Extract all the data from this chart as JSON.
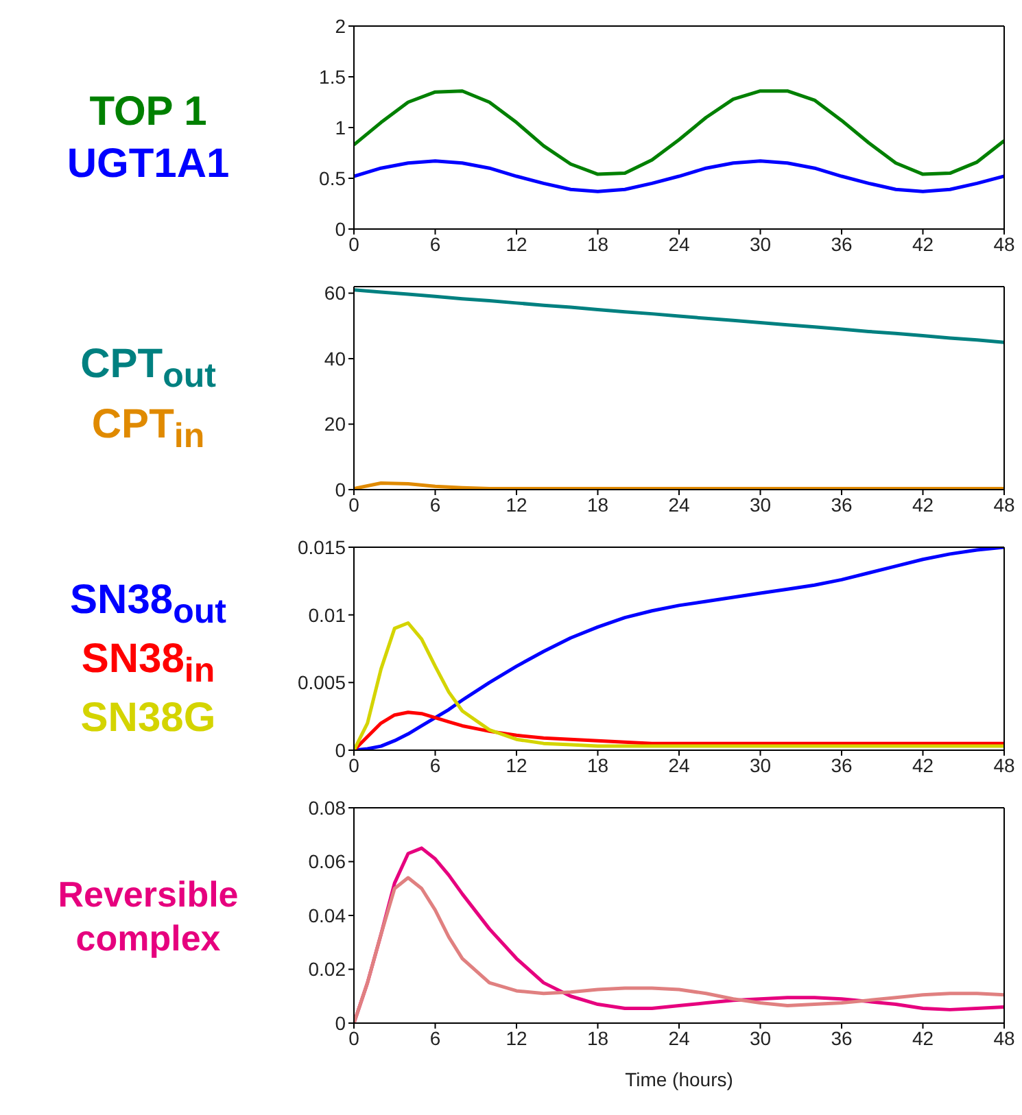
{
  "chart_data": [
    {
      "type": "line",
      "legend": "left",
      "x": [
        0,
        2,
        4,
        6,
        8,
        10,
        12,
        14,
        16,
        18,
        20,
        22,
        24,
        26,
        28,
        30,
        32,
        34,
        36,
        38,
        40,
        42,
        44,
        46,
        48
      ],
      "xlim": [
        0,
        48
      ],
      "xticks": [
        0,
        6,
        12,
        18,
        24,
        30,
        36,
        42,
        48
      ],
      "ylim": [
        0,
        2
      ],
      "yticks": [
        0,
        0.5,
        1,
        1.5,
        2
      ],
      "series": [
        {
          "name": "TOP 1",
          "color": "#008000",
          "values": [
            0.83,
            1.05,
            1.25,
            1.35,
            1.36,
            1.25,
            1.05,
            0.82,
            0.64,
            0.54,
            0.55,
            0.68,
            0.88,
            1.1,
            1.28,
            1.36,
            1.36,
            1.27,
            1.07,
            0.85,
            0.65,
            0.54,
            0.55,
            0.66,
            0.87
          ]
        },
        {
          "name": "UGT1A1",
          "color": "#0000ff",
          "values": [
            0.52,
            0.6,
            0.65,
            0.67,
            0.65,
            0.6,
            0.52,
            0.45,
            0.39,
            0.37,
            0.39,
            0.45,
            0.52,
            0.6,
            0.65,
            0.67,
            0.65,
            0.6,
            0.52,
            0.45,
            0.39,
            0.37,
            0.39,
            0.45,
            0.52
          ]
        }
      ]
    },
    {
      "type": "line",
      "legend": "left",
      "x": [
        0,
        2,
        4,
        6,
        8,
        10,
        12,
        14,
        16,
        18,
        20,
        22,
        24,
        26,
        28,
        30,
        32,
        34,
        36,
        38,
        40,
        42,
        44,
        46,
        48
      ],
      "xlim": [
        0,
        48
      ],
      "xticks": [
        0,
        6,
        12,
        18,
        24,
        30,
        36,
        42,
        48
      ],
      "ylim": [
        0,
        62
      ],
      "yticks": [
        0,
        20,
        40,
        60
      ],
      "series": [
        {
          "name": "CPT$_{out}$",
          "color": "#008080",
          "values": [
            61,
            60.3,
            59.7,
            59,
            58.3,
            57.7,
            57,
            56.3,
            55.7,
            55,
            54.3,
            53.7,
            53,
            52.3,
            51.7,
            51,
            50.3,
            49.7,
            49,
            48.3,
            47.7,
            47,
            46.3,
            45.7,
            45
          ]
        },
        {
          "name": "CPT$_{in}$",
          "color": "#e08a00",
          "values": [
            0.3,
            2,
            1.8,
            1,
            0.6,
            0.3,
            0.3,
            0.3,
            0.3,
            0.3,
            0.3,
            0.3,
            0.3,
            0.3,
            0.3,
            0.3,
            0.3,
            0.3,
            0.3,
            0.3,
            0.3,
            0.3,
            0.3,
            0.3,
            0.3
          ]
        }
      ]
    },
    {
      "type": "line",
      "legend": "left",
      "x": [
        0,
        1,
        2,
        3,
        4,
        5,
        6,
        7,
        8,
        10,
        12,
        14,
        16,
        18,
        20,
        22,
        24,
        26,
        28,
        30,
        32,
        34,
        36,
        38,
        40,
        42,
        44,
        46,
        48
      ],
      "xlim": [
        0,
        48
      ],
      "xticks": [
        0,
        6,
        12,
        18,
        24,
        30,
        36,
        42,
        48
      ],
      "ylim": [
        0,
        0.015
      ],
      "yticks": [
        0,
        0.005,
        0.01,
        0.015
      ],
      "series": [
        {
          "name": "SN38$_{out}$",
          "color": "#0000ff",
          "values": [
            0,
            0.0001,
            0.0003,
            0.0007,
            0.0012,
            0.0018,
            0.0024,
            0.003,
            0.0037,
            0.005,
            0.0062,
            0.0073,
            0.0083,
            0.0091,
            0.0098,
            0.0103,
            0.0107,
            0.011,
            0.0113,
            0.0116,
            0.0119,
            0.0122,
            0.0126,
            0.0131,
            0.0136,
            0.0141,
            0.0145,
            0.0148,
            0.015
          ]
        },
        {
          "name": "SN38$_{in}$",
          "color": "#ff0000",
          "values": [
            0,
            0.001,
            0.002,
            0.0026,
            0.0028,
            0.0027,
            0.0024,
            0.0021,
            0.0018,
            0.0014,
            0.0011,
            0.0009,
            0.0008,
            0.0007,
            0.0006,
            0.0005,
            0.0005,
            0.0005,
            0.0005,
            0.0005,
            0.0005,
            0.0005,
            0.0005,
            0.0005,
            0.0005,
            0.0005,
            0.0005,
            0.0005,
            0.0005
          ]
        },
        {
          "name": "SN38G",
          "color": "#d4d400",
          "values": [
            0,
            0.002,
            0.006,
            0.009,
            0.0094,
            0.0082,
            0.0062,
            0.0043,
            0.0029,
            0.0015,
            0.0008,
            0.0005,
            0.0004,
            0.0003,
            0.0003,
            0.0003,
            0.0003,
            0.0003,
            0.0003,
            0.0003,
            0.0003,
            0.0003,
            0.0003,
            0.0003,
            0.0003,
            0.0003,
            0.0003,
            0.0003,
            0.0003
          ]
        }
      ]
    },
    {
      "type": "line",
      "legend": "left",
      "xlabel": "Time (hours)",
      "x": [
        0,
        1,
        2,
        3,
        4,
        5,
        6,
        7,
        8,
        10,
        12,
        14,
        16,
        18,
        20,
        22,
        24,
        26,
        28,
        30,
        32,
        34,
        36,
        38,
        40,
        42,
        44,
        46,
        48
      ],
      "xlim": [
        0,
        48
      ],
      "xticks": [
        0,
        6,
        12,
        18,
        24,
        30,
        36,
        42,
        48
      ],
      "ylim": [
        0,
        0.08
      ],
      "yticks": [
        0,
        0.02,
        0.04,
        0.06,
        0.08
      ],
      "series": [
        {
          "name": "Reversible complex",
          "color": "#e6007e",
          "values": [
            0,
            0.015,
            0.033,
            0.052,
            0.063,
            0.065,
            0.061,
            0.055,
            0.048,
            0.035,
            0.024,
            0.015,
            0.01,
            0.007,
            0.0055,
            0.0055,
            0.0065,
            0.0075,
            0.0085,
            0.009,
            0.0095,
            0.0095,
            0.009,
            0.008,
            0.007,
            0.0055,
            0.005,
            0.0055,
            0.006
          ]
        },
        {
          "color": "#e08080",
          "values": [
            0,
            0.015,
            0.033,
            0.05,
            0.054,
            0.05,
            0.042,
            0.032,
            0.024,
            0.015,
            0.012,
            0.011,
            0.0115,
            0.0125,
            0.013,
            0.013,
            0.0125,
            0.011,
            0.009,
            0.0075,
            0.0065,
            0.007,
            0.0075,
            0.0085,
            0.0095,
            0.0105,
            0.011,
            0.011,
            0.0105
          ]
        }
      ]
    }
  ]
}
